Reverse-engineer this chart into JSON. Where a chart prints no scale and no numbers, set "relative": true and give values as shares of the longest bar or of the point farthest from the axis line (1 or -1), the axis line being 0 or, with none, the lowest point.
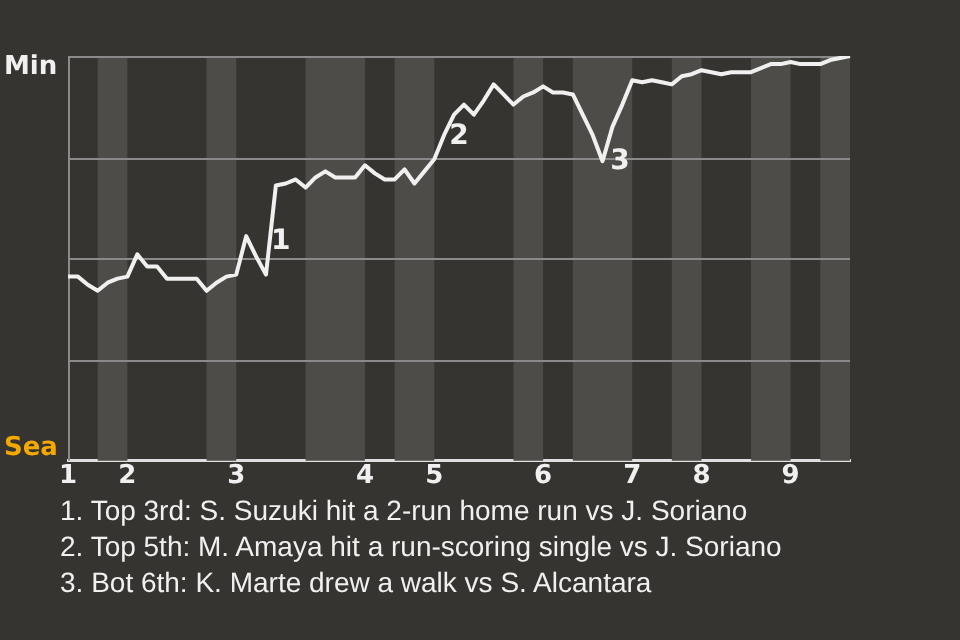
{
  "chart_data": {
    "type": "line",
    "relative": true,
    "categories": [
      "1",
      null,
      null,
      null,
      null,
      null,
      "2",
      null,
      null,
      null,
      null,
      null,
      null,
      null,
      null,
      null,
      null,
      "3",
      null,
      null,
      null,
      null,
      null,
      null,
      null,
      null,
      null,
      null,
      null,
      null,
      "4",
      null,
      null,
      null,
      null,
      null,
      null,
      "5",
      null,
      null,
      null,
      null,
      null,
      null,
      null,
      null,
      null,
      null,
      "6",
      null,
      null,
      null,
      null,
      null,
      null,
      null,
      null,
      "7",
      null,
      null,
      null,
      null,
      null,
      null,
      "8",
      null,
      null,
      null,
      null,
      null,
      null,
      null,
      null,
      "9",
      null,
      null,
      null,
      null,
      null,
      null
    ],
    "series": [
      {
        "color": "#f0f0f0",
        "values": [
          0.455,
          0.455,
          0.435,
          0.42,
          0.44,
          0.45,
          0.455,
          0.51,
          0.48,
          0.48,
          0.45,
          0.45,
          0.45,
          0.45,
          0.42,
          0.44,
          0.455,
          0.46,
          0.555,
          0.505,
          0.46,
          0.68,
          0.685,
          0.695,
          0.675,
          0.7,
          0.715,
          0.7,
          0.7,
          0.7,
          0.73,
          0.71,
          0.695,
          0.695,
          0.72,
          0.685,
          0.715,
          0.745,
          0.805,
          0.855,
          0.88,
          0.855,
          0.89,
          0.93,
          0.905,
          0.88,
          0.9,
          0.91,
          0.925,
          0.91,
          0.91,
          0.905,
          0.855,
          0.805,
          0.74,
          0.825,
          0.88,
          0.94,
          0.935,
          0.94,
          0.935,
          0.93,
          0.95,
          0.955,
          0.965,
          0.96,
          0.955,
          0.96,
          0.96,
          0.96,
          0.97,
          0.98,
          0.98,
          0.985,
          0.98,
          0.98,
          0.98,
          0.99,
          0.995,
          1
        ],
        "colors": [
          "#f0f0f0",
          "#f0f0f0",
          "#f0f0f0",
          "#f5a800",
          "#f5a800",
          "#f5a800",
          "#f0f0f0",
          "#f0f0f0",
          "#f0f0f0",
          "#f0f0f0",
          "#f0f0f0",
          "#f0f0f0",
          "#f0f0f0",
          "#f0f0f0",
          "#f5a800",
          "#f5a800",
          "#f5a800",
          "#f0f0f0",
          "#f0f0f0",
          "#f0f0f0",
          "#f0f0f0",
          "#f0f0f0",
          "#f0f0f0",
          "#f0f0f0",
          "#f5a800",
          "#f5a800",
          "#f5a800",
          "#f5a800",
          "#f5a800",
          "#f5a800",
          "#f0f0f0",
          "#f0f0f0",
          "#f0f0f0",
          "#f5a800",
          "#f5a800",
          "#f5a800",
          "#f5a800",
          "#f0f0f0",
          "#f0f0f0",
          "#f0f0f0",
          "#f0f0f0",
          "#f0f0f0",
          "#f0f0f0",
          "#f0f0f0",
          "#f0f0f0",
          "#f5a800",
          "#f5a800",
          "#f5a800",
          "#f0f0f0",
          "#f0f0f0",
          "#f0f0f0",
          "#f5a800",
          "#f5a800",
          "#f5a800",
          "#f5a800",
          "#f5a800",
          "#f5a800",
          "#f0f0f0",
          "#f0f0f0",
          "#f0f0f0",
          "#f0f0f0",
          "#f5a800",
          "#f5a800",
          "#f5a800",
          "#f0f0f0",
          "#f0f0f0",
          "#f0f0f0",
          "#f0f0f0",
          "#f0f0f0",
          "#f5a800",
          "#f5a800",
          "#f5a800",
          "#f5a800",
          "#f0f0f0",
          "#f0f0f0",
          "#f0f0f0",
          "#f5a800",
          "#f5a800",
          "#f5a800",
          "#f5a800"
        ]
      }
    ],
    "grid": "y",
    "legend": false,
    "marker": "none",
    "line_style": "solid",
    "annotations": [
      "Min",
      "Sea",
      "1",
      "2",
      "3",
      "1. Top 3rd: S. Suzuki hit a 2-run home run vs J. Soriano",
      "2. Top 5th: M. Amaya hit a run-scoring single vs J. Soriano",
      "3. Bot 6th: K. Marte drew a walk vs S. Alcantara"
    ]
  }
}
